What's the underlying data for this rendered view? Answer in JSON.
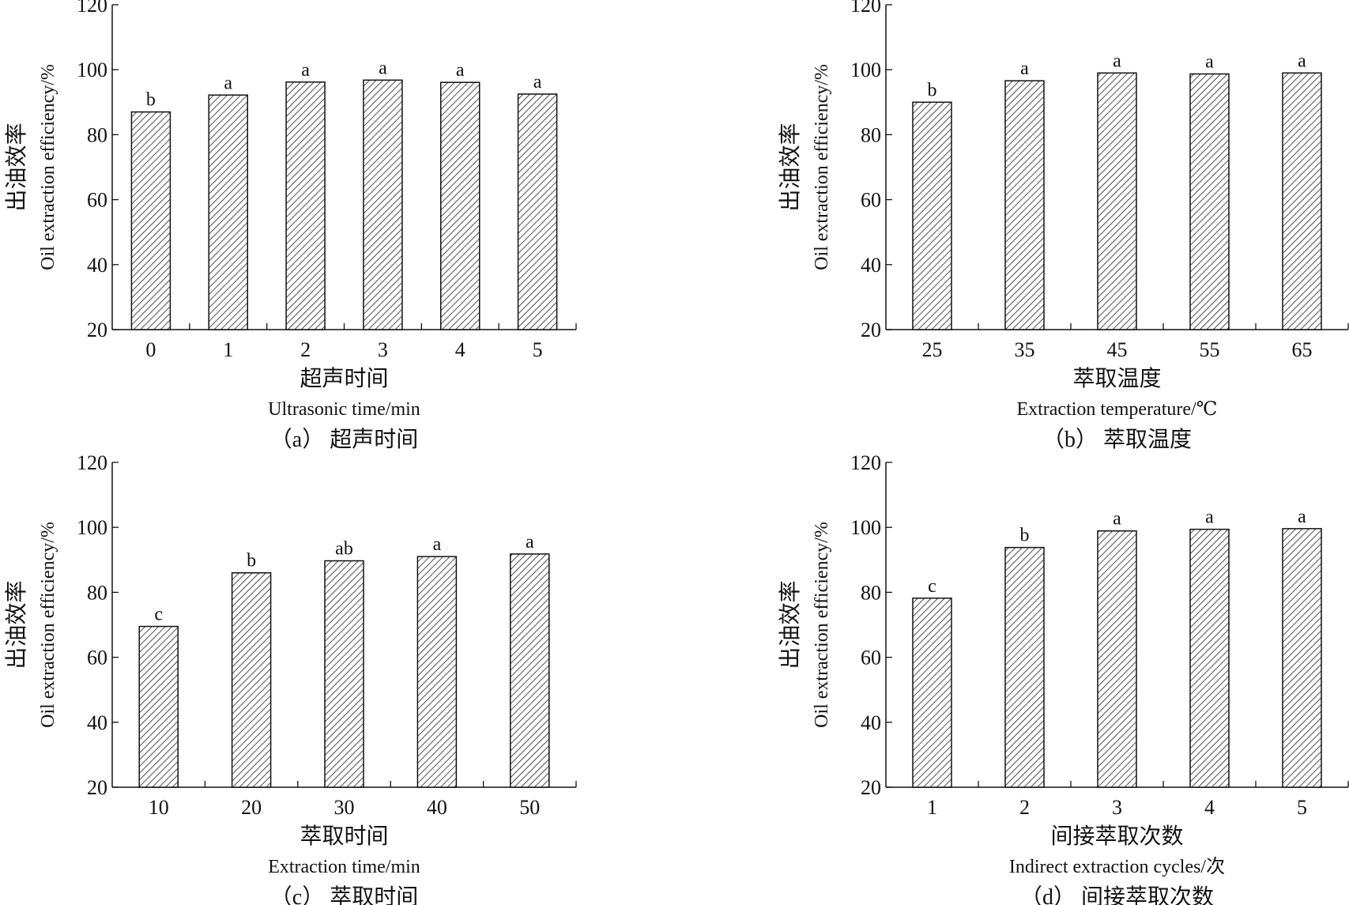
{
  "chart_data": [
    {
      "type": "bar",
      "panel_caption": "（a） 超声时间",
      "xlabel_cn": "超声时间",
      "xlabel_en": "Ultrasonic time/min",
      "ylabel_cn": "出油效率",
      "ylabel_en": "Oil extraction efficiency/%",
      "ylim": [
        20,
        120
      ],
      "yticks": [
        20,
        40,
        60,
        80,
        100,
        120
      ],
      "categories": [
        "0",
        "1",
        "2",
        "3",
        "4",
        "5"
      ],
      "values": [
        87.0,
        92.2,
        96.2,
        96.8,
        96.1,
        92.5
      ],
      "letters": [
        "b",
        "a",
        "a",
        "a",
        "a",
        "a"
      ]
    },
    {
      "type": "bar",
      "panel_caption": "（b） 萃取温度",
      "xlabel_cn": "萃取温度",
      "xlabel_en": "Extraction temperature/℃",
      "ylabel_cn": "出油效率",
      "ylabel_en": "Oil extraction efficiency/%",
      "ylim": [
        20,
        120
      ],
      "yticks": [
        20,
        40,
        60,
        80,
        100,
        120
      ],
      "categories": [
        "25",
        "35",
        "45",
        "55",
        "65"
      ],
      "values": [
        90.0,
        96.6,
        99.0,
        98.7,
        99.0
      ],
      "letters": [
        "b",
        "a",
        "a",
        "a",
        "a"
      ]
    },
    {
      "type": "bar",
      "panel_caption": "（c） 萃取时间",
      "xlabel_cn": "萃取时间",
      "xlabel_en": "Extraction time/min",
      "ylabel_cn": "出油效率",
      "ylabel_en": "Oil extraction efficiency/%",
      "ylim": [
        20,
        120
      ],
      "yticks": [
        20,
        40,
        60,
        80,
        100,
        120
      ],
      "categories": [
        "10",
        "20",
        "30",
        "40",
        "50"
      ],
      "values": [
        69.5,
        86.0,
        89.7,
        91.0,
        91.8
      ],
      "letters": [
        "c",
        "b",
        "ab",
        "a",
        "a"
      ]
    },
    {
      "type": "bar",
      "panel_caption": "（d） 间接萃取次数",
      "xlabel_cn": "间接萃取次数",
      "xlabel_en": "Indirect extraction cycles/次",
      "ylabel_cn": "出油效率",
      "ylabel_en": "Oil extraction efficiency/%",
      "ylim": [
        20,
        120
      ],
      "yticks": [
        20,
        40,
        60,
        80,
        100,
        120
      ],
      "categories": [
        "1",
        "2",
        "3",
        "4",
        "5"
      ],
      "values": [
        78.2,
        93.8,
        98.9,
        99.4,
        99.6
      ],
      "letters": [
        "c",
        "b",
        "a",
        "a",
        "a"
      ]
    }
  ]
}
